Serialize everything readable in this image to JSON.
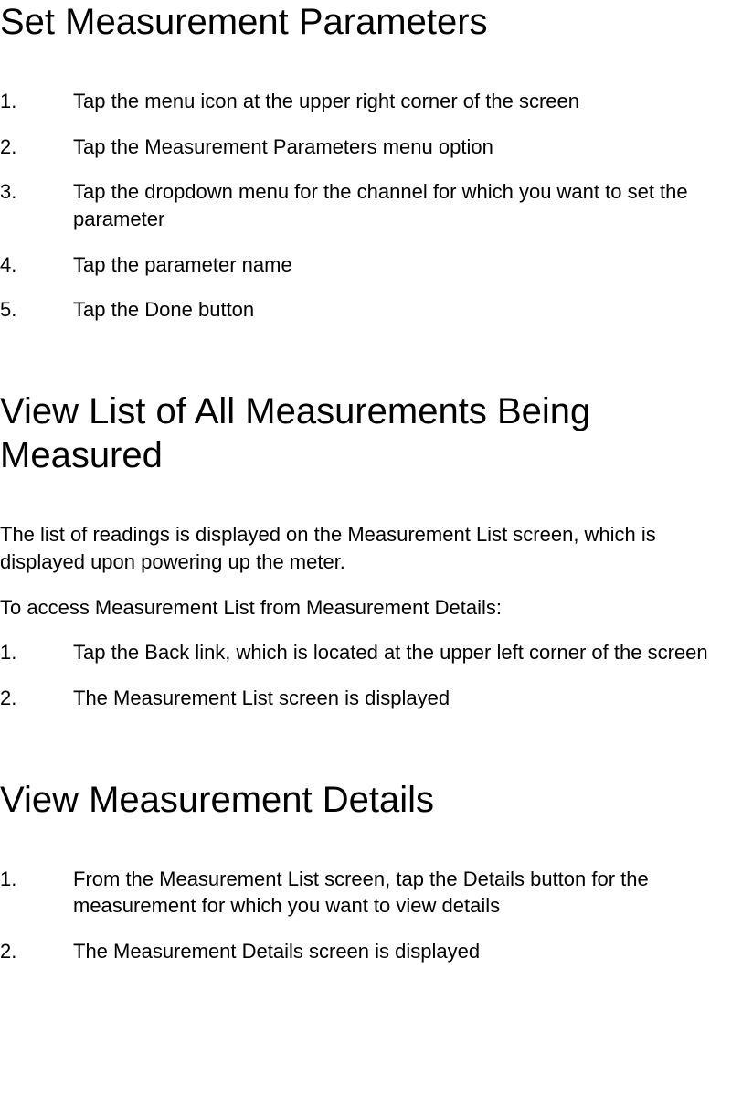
{
  "sections": [
    {
      "heading": "Set Measurement Parameters",
      "paragraphs": [],
      "steps": [
        "Tap the menu icon at the upper right corner of the screen",
        "Tap the Measurement Parameters menu option",
        "Tap the dropdown menu for the channel for which you want to set the parameter",
        "Tap the parameter name",
        "Tap the Done button"
      ]
    },
    {
      "heading": "View List of All Measurements Being Measured",
      "paragraphs": [
        "The list of readings is displayed on the Measurement List screen, which is displayed upon powering up the meter.",
        "To access Measurement List from Measurement Details:"
      ],
      "steps": [
        "Tap the Back link, which is located at the upper left corner of the screen",
        "The Measurement List screen is displayed"
      ]
    },
    {
      "heading": "View Measurement Details",
      "paragraphs": [],
      "steps": [
        "From the Measurement List screen, tap the Details button for the measurement for which you want to view details",
        "The Measurement Details screen is displayed"
      ]
    }
  ]
}
